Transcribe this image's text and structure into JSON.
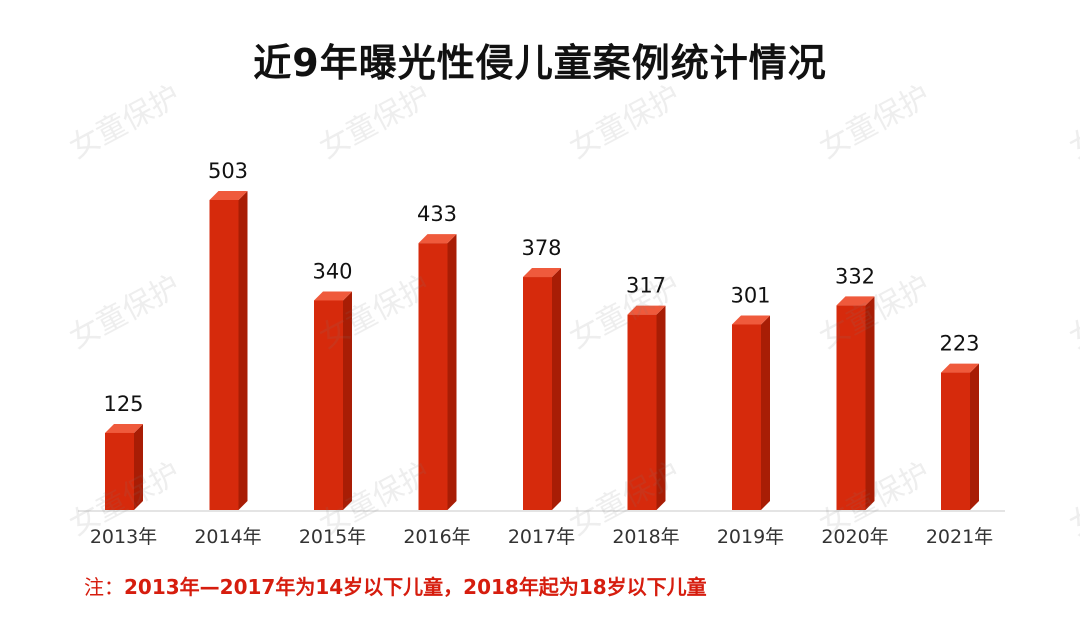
{
  "title": "近9年曝光性侵儿童案例统计情况",
  "watermark": "女童保护",
  "footnote": {
    "prefix": "注：",
    "text": "2013年—2017年为14岁以下儿童，2018年起为18岁以下儿童"
  },
  "colors": {
    "bar_front": "#d62a0c",
    "bar_side": "#a81d05",
    "bar_top": "#ef5a3c",
    "footnote": "#d61d0e"
  },
  "chart_data": {
    "type": "bar",
    "title": "近9年曝光性侵儿童案例统计情况",
    "categories": [
      "2013年",
      "2014年",
      "2015年",
      "2016年",
      "2017年",
      "2018年",
      "2019年",
      "2020年",
      "2021年"
    ],
    "values": [
      125,
      503,
      340,
      433,
      378,
      317,
      301,
      332,
      223
    ],
    "xlabel": "",
    "ylabel": "",
    "ylim": [
      0,
      503
    ],
    "grid": false,
    "legend": "none"
  }
}
